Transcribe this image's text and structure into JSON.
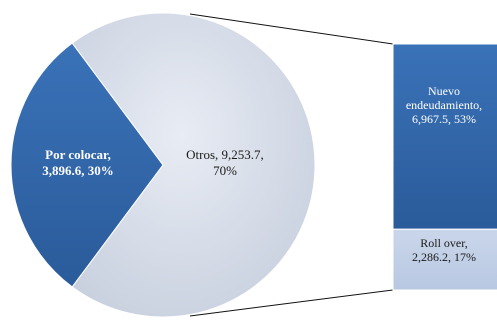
{
  "chart_data": {
    "type": "bar-of-pie",
    "pie": {
      "slices": [
        {
          "label": "Por colocar",
          "value": 3896.6,
          "percent": 30,
          "color": "#2e63a6",
          "label_lines": [
            "Por colocar,",
            "3,896.6, 30%"
          ],
          "text_color": "#ffffff",
          "bold": true
        },
        {
          "label": "Otros",
          "value": 9253.7,
          "percent": 70,
          "color": "#d2d9e6",
          "label_lines": [
            "Otros, 9,253.7,",
            "70%"
          ],
          "text_color": "#1a1a1a",
          "bold": false
        }
      ]
    },
    "bar": {
      "parent": "Otros",
      "segments": [
        {
          "label": "Nuevo endeudamiento",
          "value": 6967.5,
          "percent": 53,
          "color": "#2e63a6",
          "label_lines": [
            "Nuevo",
            "endeudamiento,",
            "6,967.5, 53%"
          ],
          "text_color": "#ffffff"
        },
        {
          "label": "Roll over",
          "value": 2286.2,
          "percent": 17,
          "color": "#c5d2e8",
          "label_lines": [
            "Roll over,",
            "2,286.2, 17%"
          ],
          "text_color": "#1a1a1a"
        }
      ]
    },
    "connector_color": "#111111"
  }
}
